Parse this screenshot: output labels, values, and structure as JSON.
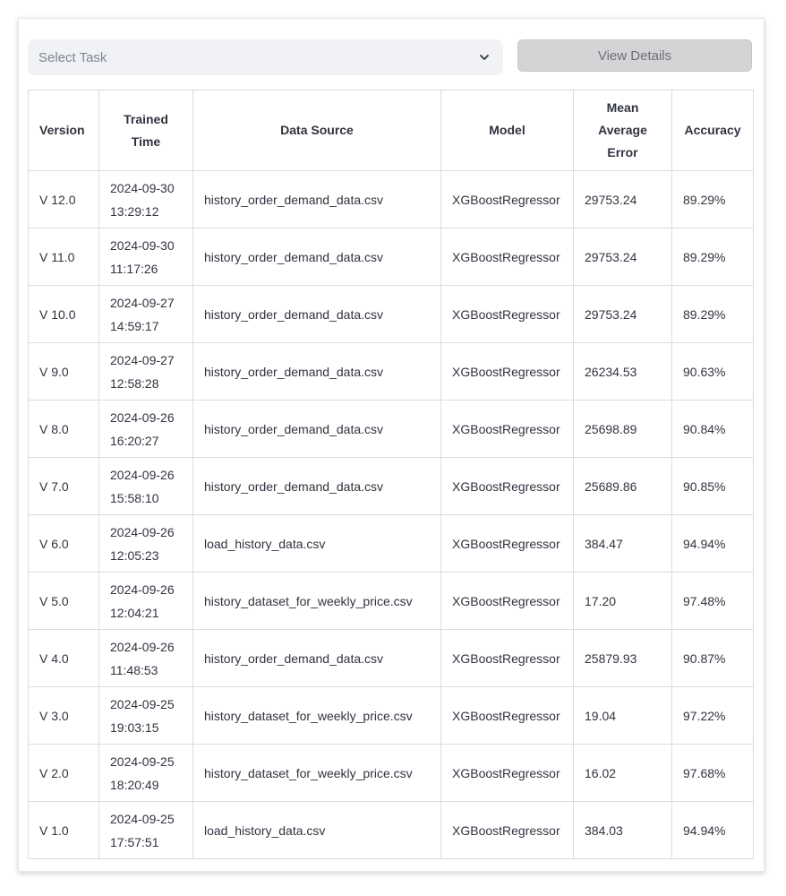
{
  "toolbar": {
    "select_placeholder": "Select Task",
    "view_button": "View Details"
  },
  "table": {
    "headers": {
      "version": "Version",
      "trained_time_1": "Trained",
      "trained_time_2": "Time",
      "data_source": "Data Source",
      "model": "Model",
      "mae_1": "Mean",
      "mae_2": "Average",
      "mae_3": "Error",
      "accuracy": "Accuracy"
    },
    "rows": [
      {
        "version": "V 12.0",
        "date": "2024-09-30",
        "time": "13:29:12",
        "source": "history_order_demand_data.csv",
        "model": "XGBoostRegressor",
        "mae": "29753.24",
        "accuracy": "89.29%"
      },
      {
        "version": "V 11.0",
        "date": "2024-09-30",
        "time": "11:17:26",
        "source": "history_order_demand_data.csv",
        "model": "XGBoostRegressor",
        "mae": "29753.24",
        "accuracy": "89.29%"
      },
      {
        "version": "V 10.0",
        "date": "2024-09-27",
        "time": "14:59:17",
        "source": "history_order_demand_data.csv",
        "model": "XGBoostRegressor",
        "mae": "29753.24",
        "accuracy": "89.29%"
      },
      {
        "version": "V 9.0",
        "date": "2024-09-27",
        "time": "12:58:28",
        "source": "history_order_demand_data.csv",
        "model": "XGBoostRegressor",
        "mae": "26234.53",
        "accuracy": "90.63%"
      },
      {
        "version": "V 8.0",
        "date": "2024-09-26",
        "time": "16:20:27",
        "source": "history_order_demand_data.csv",
        "model": "XGBoostRegressor",
        "mae": "25698.89",
        "accuracy": "90.84%"
      },
      {
        "version": "V 7.0",
        "date": "2024-09-26",
        "time": "15:58:10",
        "source": "history_order_demand_data.csv",
        "model": "XGBoostRegressor",
        "mae": "25689.86",
        "accuracy": "90.85%"
      },
      {
        "version": "V 6.0",
        "date": "2024-09-26",
        "time": "12:05:23",
        "source": "load_history_data.csv",
        "model": "XGBoostRegressor",
        "mae": "384.47",
        "accuracy": "94.94%"
      },
      {
        "version": "V 5.0",
        "date": "2024-09-26",
        "time": "12:04:21",
        "source": "history_dataset_for_weekly_price.csv",
        "model": "XGBoostRegressor",
        "mae": "17.20",
        "accuracy": "97.48%"
      },
      {
        "version": "V 4.0",
        "date": "2024-09-26",
        "time": "11:48:53",
        "source": "history_order_demand_data.csv",
        "model": "XGBoostRegressor",
        "mae": "25879.93",
        "accuracy": "90.87%"
      },
      {
        "version": "V 3.0",
        "date": "2024-09-25",
        "time": "19:03:15",
        "source": "history_dataset_for_weekly_price.csv",
        "model": "XGBoostRegressor",
        "mae": "19.04",
        "accuracy": "97.22%"
      },
      {
        "version": "V 2.0",
        "date": "2024-09-25",
        "time": "18:20:49",
        "source": "history_dataset_for_weekly_price.csv",
        "model": "XGBoostRegressor",
        "mae": "16.02",
        "accuracy": "97.68%"
      },
      {
        "version": "V 1.0",
        "date": "2024-09-25",
        "time": "17:57:51",
        "source": "load_history_data.csv",
        "model": "XGBoostRegressor",
        "mae": "384.03",
        "accuracy": "94.94%"
      }
    ]
  },
  "icons": {
    "dropdown": "chevron-down-icon"
  }
}
